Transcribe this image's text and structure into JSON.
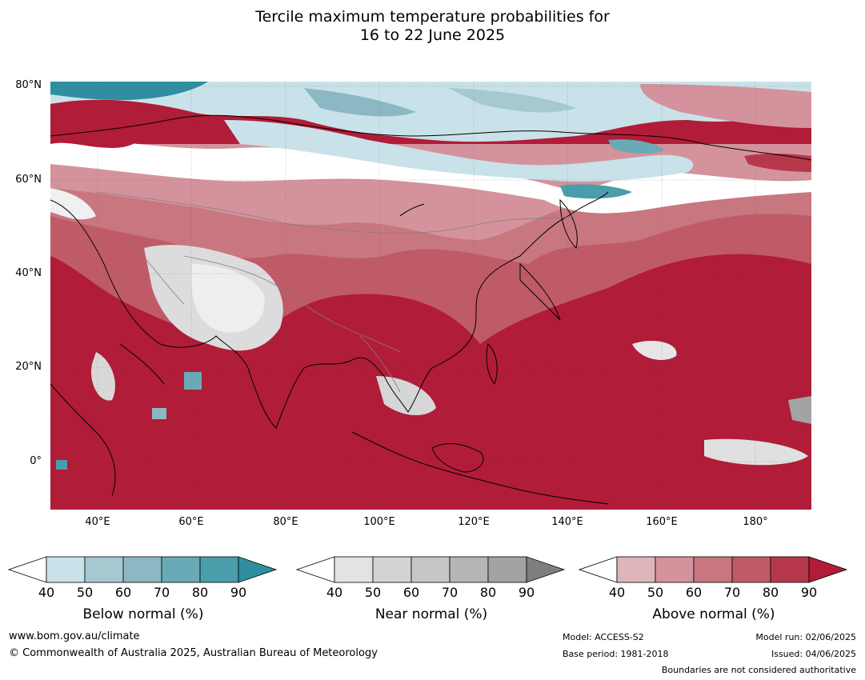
{
  "title_line1": "Tercile maximum temperature probabilities for",
  "title_line2": "16 to 22 June 2025",
  "map": {
    "lat_labels": [
      "80°N",
      "60°N",
      "40°N",
      "20°N",
      "0°"
    ],
    "lon_labels": [
      "40°E",
      "60°E",
      "80°E",
      "100°E",
      "120°E",
      "140°E",
      "160°E",
      "180°"
    ]
  },
  "colorbars": [
    {
      "title": "Below normal (%)",
      "ticks": [
        "40",
        "50",
        "60",
        "70",
        "80",
        "90"
      ],
      "colors": [
        "#ffffff",
        "#c9e2e9",
        "#a6c9d1",
        "#8bb8c3",
        "#6aaab6",
        "#4a9daa",
        "#2f8fa0"
      ]
    },
    {
      "title": "Near normal (%)",
      "ticks": [
        "40",
        "50",
        "60",
        "70",
        "80",
        "90"
      ],
      "colors": [
        "#ffffff",
        "#e3e3e3",
        "#d3d3d3",
        "#c6c6c6",
        "#b5b5b5",
        "#a3a3a3",
        "#7e7e7e"
      ]
    },
    {
      "title": "Above normal (%)",
      "ticks": [
        "40",
        "50",
        "60",
        "70",
        "80",
        "90"
      ],
      "colors": [
        "#ffffff",
        "#deb5bb",
        "#d4939c",
        "#c87780",
        "#bf5b67",
        "#b8384b",
        "#b11c38"
      ]
    }
  ],
  "footer": {
    "website": "www.bom.gov.au/climate",
    "copyright": "© Commonwealth of Australia 2025, Australian Bureau of Meteorology",
    "model": "Model: ACCESS-S2",
    "base_period": "Base period: 1981-2018",
    "model_run": "Model run: 02/06/2025",
    "issued": "Issued: 04/06/2025",
    "boundaries": "Boundaries are not considered authoritative"
  }
}
